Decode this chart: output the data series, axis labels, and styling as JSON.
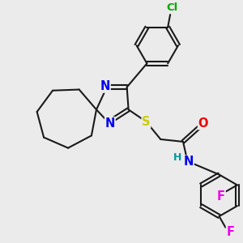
{
  "bg_color": "#ebebeb",
  "bond_color": "#1a1a1a",
  "bond_width": 1.5,
  "atom_colors": {
    "N": "#0000ee",
    "S": "#cccc00",
    "O": "#ee0000",
    "F": "#ee00ee",
    "Cl": "#00aa00",
    "H": "#009999",
    "C": "#1a1a1a"
  },
  "font_size": 9.5
}
